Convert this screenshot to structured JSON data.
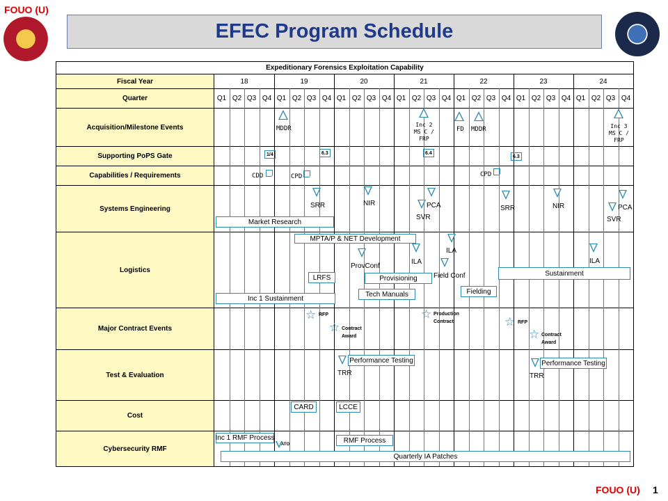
{
  "header": {
    "fouo_top": "FOUO (U)",
    "title": "EFEC Program Schedule",
    "fouo_bottom": "FOUO (U)",
    "page_number": "1"
  },
  "chart": {
    "caption": "Expeditionary Forensics Exploitation Capability",
    "fiscal_year_label": "Fiscal Year",
    "quarter_label": "Quarter",
    "years": [
      "18",
      "19",
      "20",
      "21",
      "22",
      "23",
      "24"
    ],
    "quarters": [
      "Q1",
      "Q2",
      "Q3",
      "Q4"
    ],
    "rows": [
      "Acquisition/Milestone Events",
      "Supporting PoPS Gate",
      "Capabilities / Requirements",
      "Systems Engineering",
      "Logistics",
      "Major Contract Events",
      "Test & Evaluation",
      "Cost",
      "Cybersecurity RMF"
    ]
  },
  "acquisition": {
    "mddr1": "MDDR",
    "inc2": "Inc 2\nMS C /\nFRP",
    "fd": "FD",
    "mddr2": "MDDR",
    "inc3": "Inc 3\nMS C /\nFRP"
  },
  "pops": {
    "g1": "1/4",
    "g2": "6.3",
    "g3": "6.4",
    "g4": "6.3"
  },
  "capabilities": {
    "cdd": "CDD",
    "cpd1": "CPD",
    "cpd2": "CPD"
  },
  "systems_engineering": {
    "srr1": "SRR",
    "nir1": "NIR",
    "svr1": "SVR",
    "pca1": "PCA",
    "srr2": "SRR",
    "nir2": "NIR",
    "svr2": "SVR",
    "pca2": "PCA",
    "market_research": "Market Research"
  },
  "logistics": {
    "mpta": "MPTA/P & NET Development",
    "ila1": "ILA",
    "ila2": "ILA",
    "ila3": "ILA",
    "provconf": "ProvConf",
    "fieldconf": "Field Conf",
    "lrfs": "LRFS",
    "provisioning": "Provisioning",
    "tech_manuals": "Tech Manuals",
    "fielding": "Fielding",
    "sustainment": "Sustainment",
    "inc1_sustainment": "Inc 1 Sustainment"
  },
  "contracts": {
    "rfp1": "RFP",
    "award1": "Contract\nAward",
    "production": "Production\nContract",
    "rfp2": "RFP",
    "award2": "Contract\nAward"
  },
  "test": {
    "trr1": "TRR",
    "perf1": "Performance Testing",
    "trr2": "TRR",
    "perf2": "Performance Testing"
  },
  "cost": {
    "card": "CARD",
    "lcce": "LCCE"
  },
  "cyber": {
    "inc1_rmf": "Inc 1 RMF Process",
    "ato": "ATO",
    "rmf": "RMF Process",
    "ia_patches": "Quarterly IA Patches"
  },
  "colors": {
    "accent": "#2b8ab0",
    "label_fill": "#fff9c4",
    "fouo": "#e00000",
    "title": "#1f3a8a"
  }
}
